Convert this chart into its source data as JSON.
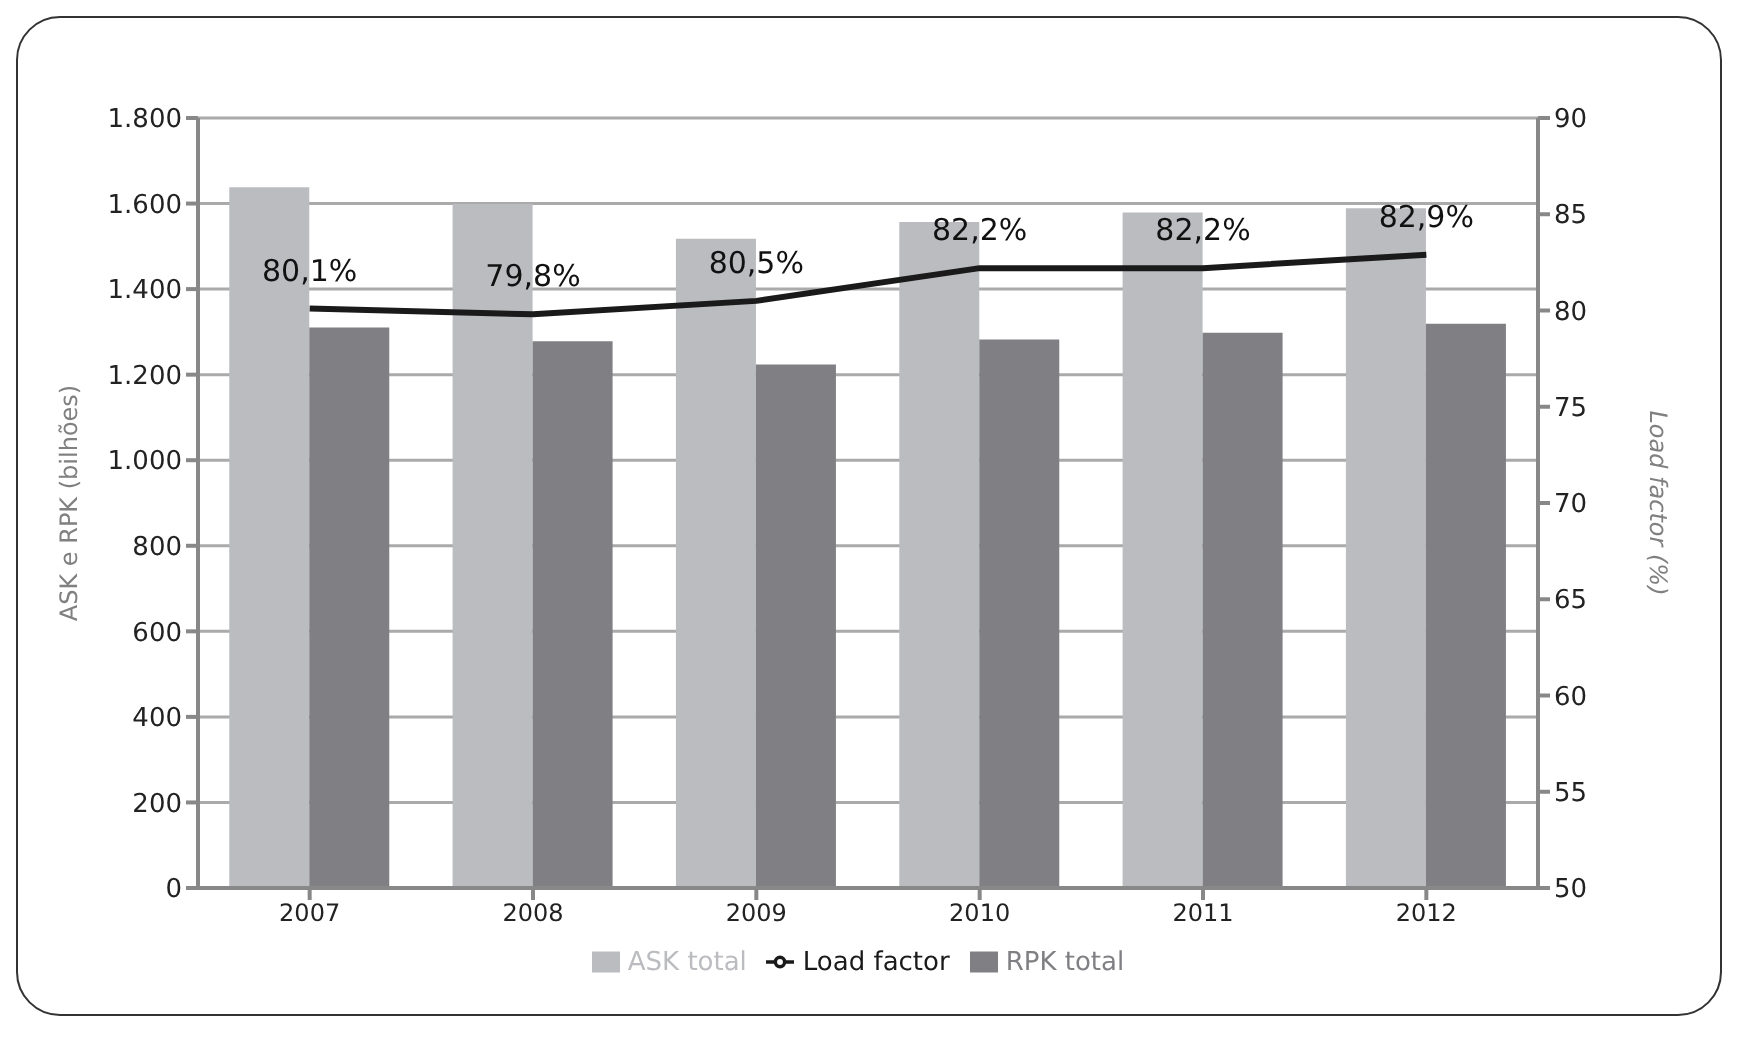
{
  "chart_data": {
    "type": "bar",
    "categories": [
      "2007",
      "2008",
      "2009",
      "2010",
      "2011",
      "2012"
    ],
    "ylabel": "ASK e RPK (bilhões)",
    "y2label": "Load factor (%)",
    "series": [
      {
        "name": "ASK total",
        "color": "#bbbcc0",
        "values": [
          1638,
          1599,
          1518,
          1557,
          1579,
          1589
        ]
      },
      {
        "name": "RPK total",
        "color": "#808084",
        "values": [
          1310,
          1278,
          1224,
          1282,
          1298,
          1319
        ]
      },
      {
        "name": "Load factor",
        "type": "line",
        "axis": "y2",
        "color": "#1a1a1a",
        "values": [
          80.1,
          79.8,
          80.5,
          82.2,
          82.2,
          82.9
        ],
        "value_labels": [
          "80,1%",
          "79,8%",
          "80,5%",
          "82,2%",
          "82,2%",
          "82,9%"
        ]
      }
    ],
    "ylim": [
      0,
      1800
    ],
    "yticks": [
      0,
      200,
      400,
      600,
      800,
      {
        "value": 1000,
        "label": "1.000"
      },
      {
        "value": 1200,
        "label": "1.200"
      },
      {
        "value": 1400,
        "label": "1.400"
      },
      {
        "value": 1600,
        "label": "1.600"
      },
      {
        "value": 1800,
        "label": "1.800"
      }
    ],
    "y2lim": [
      50,
      90
    ],
    "y2ticks": [
      50,
      55,
      60,
      65,
      70,
      75,
      80,
      85,
      90
    ],
    "grid": "y",
    "legend": "bottom",
    "marker": "none"
  }
}
